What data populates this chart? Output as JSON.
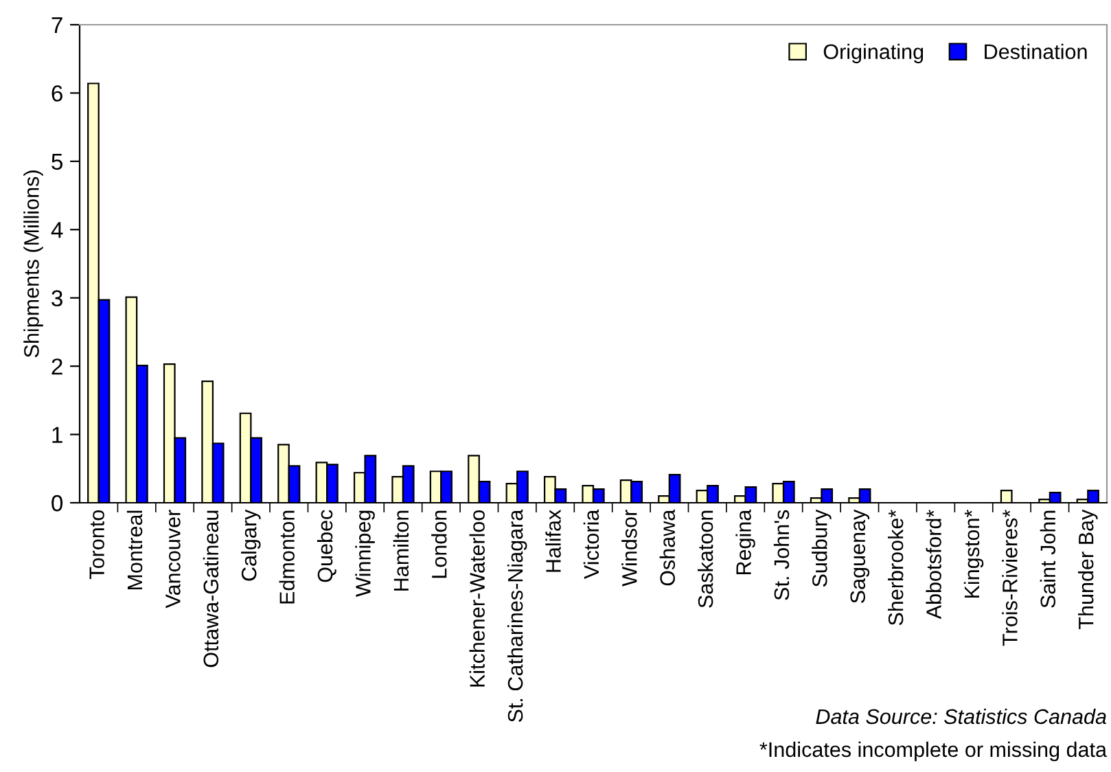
{
  "chart_data": {
    "type": "bar",
    "ylabel": "Shipments (Millions)",
    "categories": [
      "Toronto",
      "Montreal",
      "Vancouver",
      "Ottawa-Gatineau",
      "Calgary",
      "Edmonton",
      "Quebec",
      "Winnipeg",
      "Hamilton",
      "London",
      "Kitchener-Waterloo",
      "St. Catharines-Niagara",
      "Halifax",
      "Victoria",
      "Windsor",
      "Oshawa",
      "Saskatoon",
      "Regina",
      "St. John's",
      "Sudbury",
      "Saguenay",
      "Sherbrooke*",
      "Abbotsford*",
      "Kingston*",
      "Trois-Rivieres*",
      "Saint John",
      "Thunder Bay"
    ],
    "series": [
      {
        "name": "Originating",
        "color": "#ffffcc",
        "values": [
          6.14,
          3.01,
          2.03,
          1.78,
          1.31,
          0.85,
          0.59,
          0.44,
          0.38,
          0.46,
          0.69,
          0.28,
          0.38,
          0.25,
          0.33,
          0.1,
          0.18,
          0.1,
          0.28,
          0.07,
          0.07,
          null,
          null,
          null,
          0.18,
          0.05,
          0.05
        ]
      },
      {
        "name": "Destination",
        "color": "#0000ff",
        "values": [
          2.97,
          2.01,
          0.95,
          0.87,
          0.95,
          0.54,
          0.56,
          0.69,
          0.54,
          0.46,
          0.31,
          0.46,
          0.2,
          0.2,
          0.31,
          0.41,
          0.25,
          0.23,
          0.31,
          0.2,
          0.2,
          null,
          null,
          null,
          null,
          0.15,
          0.18
        ]
      }
    ],
    "ylim": [
      0,
      7
    ],
    "yticks": [
      0,
      1,
      2,
      3,
      4,
      5,
      6,
      7
    ],
    "grid": false,
    "legend": "top right",
    "annotations": [
      "Data Source: Statistics Canada",
      "*Indicates incomplete or missing data"
    ]
  }
}
